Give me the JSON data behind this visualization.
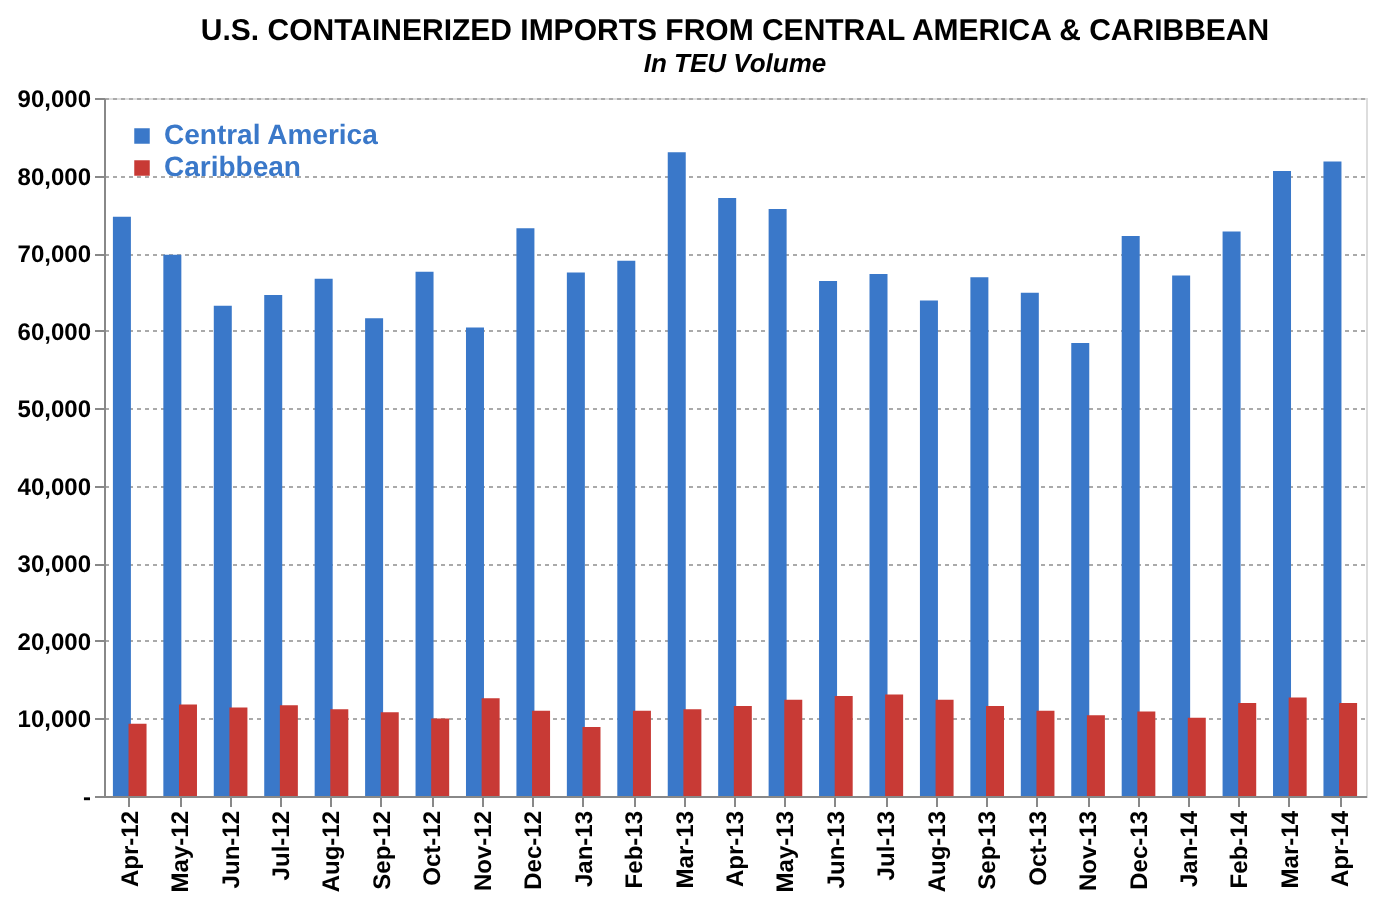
{
  "chart_data": {
    "type": "bar",
    "title": "U.S. CONTAINERIZED IMPORTS FROM CENTRAL AMERICA & CARIBBEAN",
    "subtitle": "In TEU Volume",
    "categories": [
      "Apr-12",
      "May-12",
      "Jun-12",
      "Jul-12",
      "Aug-12",
      "Sep-12",
      "Oct-12",
      "Nov-12",
      "Dec-12",
      "Jan-13",
      "Feb-13",
      "Mar-13",
      "Apr-13",
      "May-13",
      "Jun-13",
      "Jul-13",
      "Aug-13",
      "Sep-13",
      "Oct-13",
      "Nov-13",
      "Dec-13",
      "Jan-14",
      "Feb-14",
      "Mar-14",
      "Apr-14"
    ],
    "series": [
      {
        "name": "Central America",
        "color": "#3a78c9",
        "values": [
          74700,
          69800,
          63200,
          64600,
          66700,
          61600,
          67600,
          60400,
          73200,
          67500,
          69000,
          83000,
          77100,
          75700,
          66400,
          67300,
          63900,
          66900,
          64900,
          58400,
          72200,
          67100,
          72800,
          80600,
          81800
        ]
      },
      {
        "name": "Caribbean",
        "color": "#c83a35",
        "values": [
          9300,
          11800,
          11400,
          11700,
          11200,
          10800,
          10000,
          12600,
          11000,
          8900,
          11000,
          11200,
          11600,
          12400,
          12900,
          13100,
          12400,
          11600,
          11000,
          10400,
          10900,
          10100,
          12000,
          12700,
          12000
        ]
      }
    ],
    "ylim": [
      0,
      90000
    ],
    "yticks": [
      {
        "value": 0,
        "label": "-"
      },
      {
        "value": 10000,
        "label": "10,000"
      },
      {
        "value": 20000,
        "label": "20,000"
      },
      {
        "value": 30000,
        "label": "30,000"
      },
      {
        "value": 40000,
        "label": "40,000"
      },
      {
        "value": 50000,
        "label": "50,000"
      },
      {
        "value": 60000,
        "label": "60,000"
      },
      {
        "value": 70000,
        "label": "70,000"
      },
      {
        "value": 80000,
        "label": "80,000"
      },
      {
        "value": 90000,
        "label": "90,000"
      }
    ],
    "grid": "y",
    "legend": "top left"
  }
}
